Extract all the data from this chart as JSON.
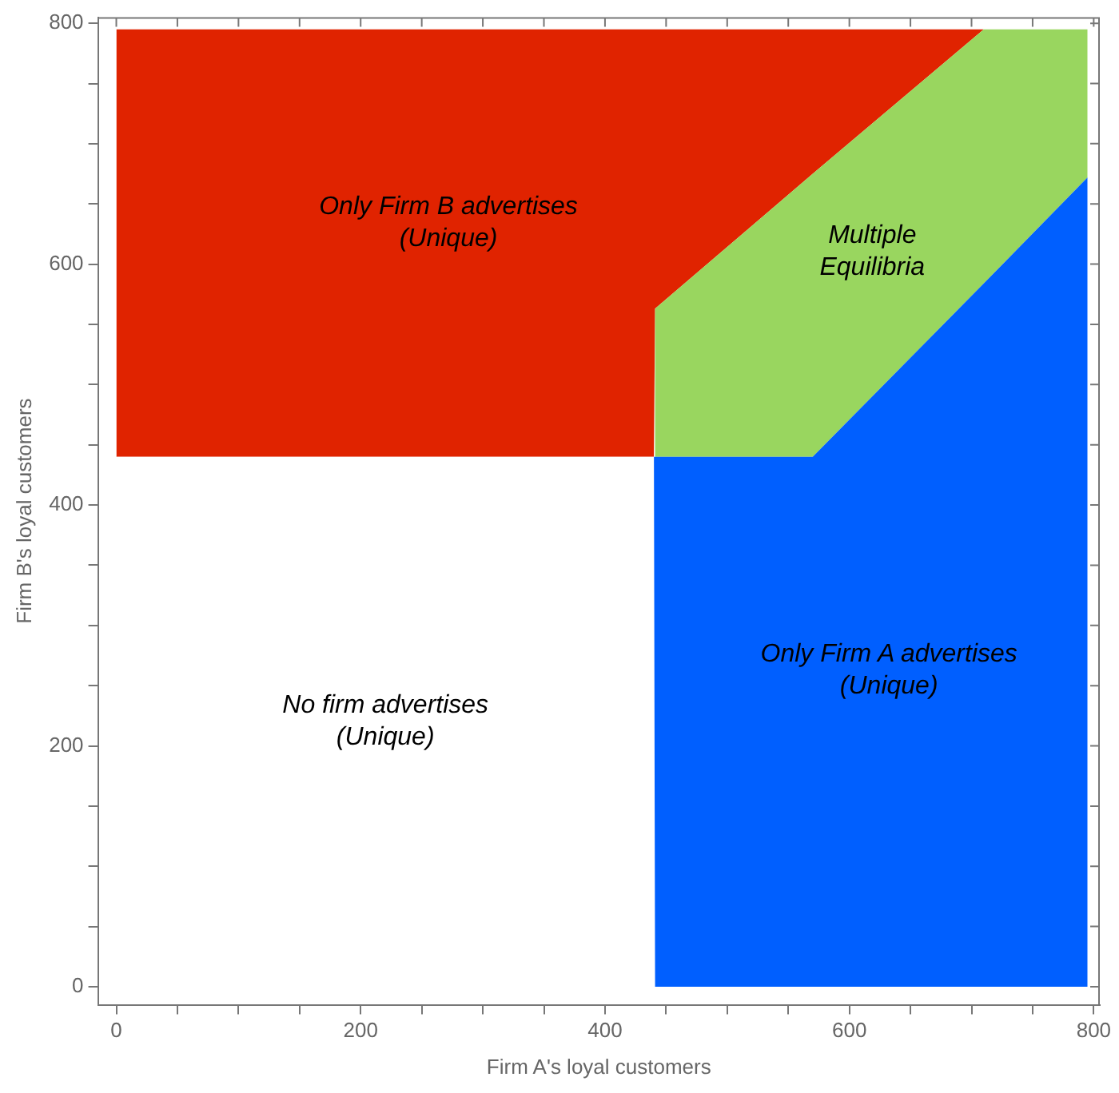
{
  "chart_data": {
    "type": "area",
    "stacked": true,
    "xlabel": "Firm A's loyal customers",
    "ylabel": "Firm B's loyal customers",
    "xlim": [
      -15,
      805
    ],
    "ylim": [
      -15,
      805
    ],
    "x": [
      0,
      440,
      441,
      570,
      710,
      795
    ],
    "xticks": [
      0,
      {
        "value": 50,
        "label": null
      },
      {
        "value": 100,
        "label": null
      },
      {
        "value": 150,
        "label": null
      },
      200,
      {
        "value": 250,
        "label": null
      },
      {
        "value": 300,
        "label": null
      },
      {
        "value": 350,
        "label": null
      },
      400,
      {
        "value": 450,
        "label": null
      },
      {
        "value": 500,
        "label": null
      },
      {
        "value": 550,
        "label": null
      },
      600,
      {
        "value": 650,
        "label": null
      },
      {
        "value": 700,
        "label": null
      },
      {
        "value": 750,
        "label": null
      },
      800
    ],
    "yticks": [
      0,
      {
        "value": 50,
        "label": null
      },
      {
        "value": 100,
        "label": null
      },
      {
        "value": 150,
        "label": null
      },
      200,
      {
        "value": 250,
        "label": null
      },
      {
        "value": 300,
        "label": null
      },
      {
        "value": 350,
        "label": null
      },
      400,
      {
        "value": 450,
        "label": null
      },
      {
        "value": 500,
        "label": null
      },
      {
        "value": 550,
        "label": null
      },
      600,
      {
        "value": 650,
        "label": null
      },
      {
        "value": 700,
        "label": null
      },
      {
        "value": 750,
        "label": null
      },
      800
    ],
    "grid": false,
    "legend": false,
    "series": [
      {
        "name": "No firm advertises\n(Unique)",
        "color": "#ffffff",
        "values": [
          440,
          440,
          0,
          0,
          0,
          0
        ]
      },
      {
        "name": "Only Firm A advertises\n(Unique)",
        "color": "#005fff",
        "values": [
          0,
          0,
          440,
          440,
          584,
          672
        ]
      },
      {
        "name": "Multiple\nEquilibria",
        "color": "#99d65f",
        "values": [
          0,
          0,
          123,
          235,
          211,
          123
        ]
      },
      {
        "name": "Only Firm B advertises\n(Unique)",
        "color": "#e02300",
        "values": [
          355,
          355,
          232,
          120,
          0,
          null
        ]
      }
    ]
  }
}
